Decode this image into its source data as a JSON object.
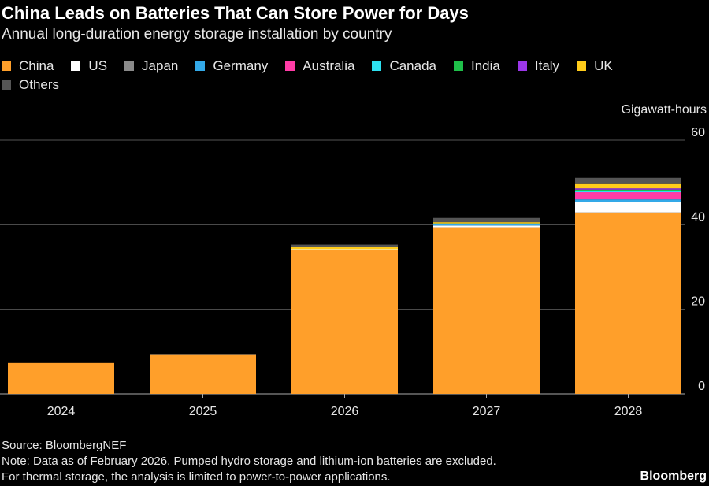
{
  "chart_data": {
    "type": "bar",
    "stacked": true,
    "title": "China Leads on Batteries That Can Store Power for Days",
    "subtitle": "Annual long-duration energy storage installation by country",
    "ylabel": "Gigawatt-hours",
    "ylim": [
      0,
      60
    ],
    "yticks": [
      0,
      20,
      40,
      60
    ],
    "categories": [
      "2024",
      "2025",
      "2026",
      "2027",
      "2028"
    ],
    "series": [
      {
        "name": "China",
        "color": "#ff9f2a",
        "values": [
          7.3,
          9.2,
          34.0,
          39.4,
          42.9
        ]
      },
      {
        "name": "US",
        "color": "#ffffff",
        "values": [
          0,
          0,
          0.2,
          0.4,
          2.4
        ]
      },
      {
        "name": "Japan",
        "color": "#8a8a8a",
        "values": [
          0,
          0,
          0,
          0,
          0
        ]
      },
      {
        "name": "Germany",
        "color": "#33a9e8",
        "values": [
          0,
          0,
          0,
          0.3,
          0.7
        ]
      },
      {
        "name": "Australia",
        "color": "#ff3ca6",
        "values": [
          0,
          0,
          0,
          0,
          1.7
        ]
      },
      {
        "name": "Canada",
        "color": "#2de0f0",
        "values": [
          0,
          0,
          0,
          0.2,
          0.2
        ]
      },
      {
        "name": "India",
        "color": "#1fc04a",
        "values": [
          0,
          0,
          0,
          0,
          0.4
        ]
      },
      {
        "name": "Italy",
        "color": "#9b36e8",
        "values": [
          0,
          0,
          0,
          0,
          0.3
        ]
      },
      {
        "name": "UK",
        "color": "#ffcc1a",
        "values": [
          0,
          0,
          0.5,
          0.3,
          1.2
        ]
      },
      {
        "name": "Others",
        "color": "#555555",
        "values": [
          0,
          0.3,
          0.6,
          1.0,
          1.3
        ]
      }
    ],
    "legend": "top-left",
    "grid": true
  },
  "footer": {
    "source": "Source: BloombergNEF",
    "note1": "Note: Data as of February 2026. Pumped hydro storage and lithium-ion batteries are excluded.",
    "note2": "For thermal storage, the analysis is limited to power-to-power applications.",
    "brand": "Bloomberg"
  }
}
